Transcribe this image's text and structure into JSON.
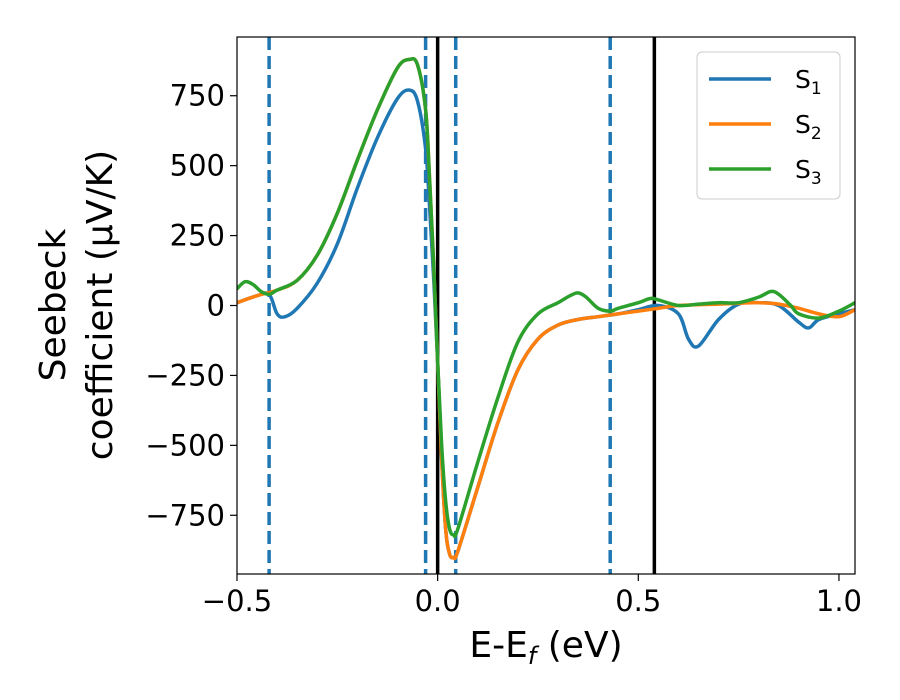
{
  "chart_data": {
    "type": "line",
    "xlabel": "E-E_f (eV)",
    "ylabel_line1": "Seebeck",
    "ylabel_line2": "coefficient  (μV/K)",
    "xlim": [
      -0.5,
      1.04
    ],
    "ylim": [
      -960,
      960
    ],
    "xticks": [
      -0.5,
      0.0,
      0.5,
      1.0
    ],
    "xtick_labels": [
      "−0.5",
      "0.0",
      "0.5",
      "1.0"
    ],
    "yticks": [
      -750,
      -500,
      -250,
      0,
      250,
      500,
      750
    ],
    "ytick_labels": [
      "−750",
      "−500",
      "−250",
      "0",
      "250",
      "500",
      "750"
    ],
    "grid": false,
    "legend_position": "top-right",
    "vlines": [
      {
        "x": -0.42,
        "style": "dashed",
        "color": "#1f77b4"
      },
      {
        "x": -0.03,
        "style": "dashed",
        "color": "#1f77b4"
      },
      {
        "x": 0.045,
        "style": "dashed",
        "color": "#1f77b4"
      },
      {
        "x": 0.43,
        "style": "dashed",
        "color": "#1f77b4"
      },
      {
        "x": 0.0,
        "style": "solid",
        "color": "#000000"
      },
      {
        "x": 0.54,
        "style": "solid",
        "color": "#000000"
      }
    ],
    "series": [
      {
        "name": "S1",
        "color": "#1f77b4",
        "x": [
          -0.5,
          -0.45,
          -0.42,
          -0.4,
          -0.38,
          -0.35,
          -0.3,
          -0.25,
          -0.2,
          -0.15,
          -0.1,
          -0.07,
          -0.05,
          -0.03,
          -0.02,
          -0.01,
          0.0,
          0.01,
          0.02,
          0.03,
          0.04,
          0.05,
          0.1,
          0.15,
          0.2,
          0.25,
          0.3,
          0.35,
          0.4,
          0.45,
          0.5,
          0.55,
          0.6,
          0.625,
          0.65,
          0.7,
          0.75,
          0.8,
          0.85,
          0.9,
          0.925,
          0.95,
          1.0,
          1.04
        ],
        "y": [
          10,
          35,
          40,
          -30,
          -40,
          -10,
          80,
          220,
          420,
          600,
          740,
          770,
          730,
          560,
          350,
          100,
          -200,
          -550,
          -800,
          -890,
          -900,
          -880,
          -650,
          -420,
          -230,
          -120,
          -70,
          -50,
          -40,
          -30,
          -15,
          0,
          -30,
          -120,
          -145,
          -50,
          5,
          10,
          0,
          -60,
          -80,
          -50,
          -30,
          -15
        ]
      },
      {
        "name": "S2",
        "color": "#ff7f0e",
        "x": [
          -0.5,
          -0.45,
          -0.4,
          -0.35,
          -0.3,
          -0.25,
          -0.2,
          -0.15,
          -0.1,
          -0.07,
          -0.05,
          -0.03,
          -0.02,
          -0.01,
          0.0,
          0.01,
          0.02,
          0.03,
          0.04,
          0.05,
          0.1,
          0.15,
          0.2,
          0.25,
          0.3,
          0.35,
          0.4,
          0.45,
          0.5,
          0.55,
          0.6,
          0.7,
          0.75,
          0.8,
          0.85,
          0.9,
          0.95,
          1.0,
          1.04
        ],
        "y": [
          10,
          35,
          55,
          90,
          180,
          330,
          520,
          700,
          850,
          880,
          860,
          700,
          450,
          150,
          -200,
          -550,
          -800,
          -890,
          -900,
          -880,
          -650,
          -420,
          -230,
          -120,
          -70,
          -50,
          -40,
          -30,
          -20,
          -10,
          0,
          5,
          8,
          10,
          5,
          -10,
          -30,
          -40,
          -15
        ]
      },
      {
        "name": "S3",
        "color": "#2ca02c",
        "x": [
          -0.5,
          -0.48,
          -0.46,
          -0.44,
          -0.42,
          -0.4,
          -0.35,
          -0.3,
          -0.25,
          -0.2,
          -0.15,
          -0.1,
          -0.07,
          -0.05,
          -0.03,
          -0.02,
          -0.01,
          0.0,
          0.01,
          0.02,
          0.03,
          0.04,
          0.05,
          0.1,
          0.15,
          0.2,
          0.25,
          0.3,
          0.33,
          0.35,
          0.37,
          0.4,
          0.43,
          0.45,
          0.5,
          0.53,
          0.55,
          0.6,
          0.65,
          0.7,
          0.75,
          0.8,
          0.83,
          0.85,
          0.88,
          0.9,
          0.95,
          1.0,
          1.04
        ],
        "y": [
          60,
          85,
          75,
          50,
          40,
          55,
          90,
          180,
          330,
          520,
          700,
          850,
          880,
          860,
          700,
          450,
          150,
          -200,
          -500,
          -700,
          -800,
          -820,
          -800,
          -560,
          -330,
          -130,
          -30,
          10,
          35,
          45,
          30,
          -10,
          -20,
          -10,
          10,
          25,
          20,
          0,
          5,
          10,
          10,
          30,
          50,
          40,
          0,
          -30,
          -45,
          -20,
          10
        ]
      }
    ]
  },
  "legend": {
    "items": [
      {
        "base": "S",
        "sub": "1",
        "color": "#1f77b4"
      },
      {
        "base": "S",
        "sub": "2",
        "color": "#ff7f0e"
      },
      {
        "base": "S",
        "sub": "3",
        "color": "#2ca02c"
      }
    ]
  }
}
